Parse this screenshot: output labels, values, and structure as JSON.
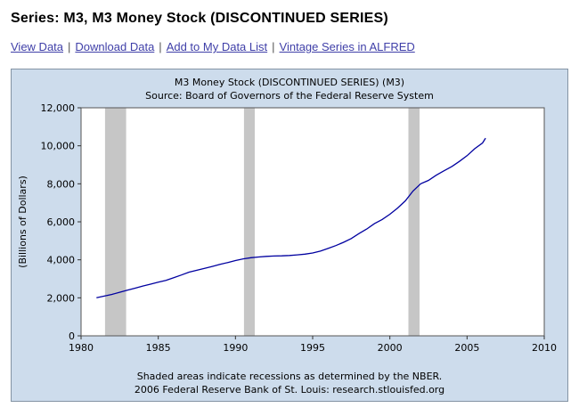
{
  "page": {
    "title": "Series: M3, M3 Money Stock (DISCONTINUED SERIES)"
  },
  "link_separator": "|",
  "links": [
    {
      "label": "View Data"
    },
    {
      "label": "Download Data"
    },
    {
      "label": "Add to My Data List"
    },
    {
      "label": "Vintage Series in ALFRED"
    }
  ],
  "chart_data": {
    "type": "line",
    "title": "M3 Money Stock (DISCONTINUED SERIES) (M3)",
    "subtitle": "Source: Board of Governors of the Federal Reserve System",
    "ylabel": "(Billions of Dollars)",
    "xlim": [
      1980,
      2010
    ],
    "ylim": [
      0,
      12000
    ],
    "x_ticks": [
      1980,
      1985,
      1990,
      1995,
      2000,
      2005,
      2010
    ],
    "y_ticks": [
      0,
      2000,
      4000,
      6000,
      8000,
      10000,
      12000
    ],
    "line_color": "#0000a0",
    "recession_color": "#c6c6c6",
    "panel_background": "#cddcec",
    "recessions": [
      [
        1981.55,
        1982.92
      ],
      [
        1990.55,
        1991.25
      ],
      [
        2001.2,
        2001.92
      ]
    ],
    "series": [
      {
        "name": "M3",
        "x": [
          1981.0,
          1981.5,
          1982.0,
          1982.5,
          1983.0,
          1983.5,
          1984.0,
          1984.5,
          1985.0,
          1985.5,
          1986.0,
          1986.5,
          1987.0,
          1987.5,
          1988.0,
          1988.5,
          1989.0,
          1989.5,
          1990.0,
          1990.5,
          1991.0,
          1991.5,
          1992.0,
          1992.5,
          1993.0,
          1993.5,
          1994.0,
          1994.5,
          1995.0,
          1995.5,
          1996.0,
          1996.5,
          1997.0,
          1997.5,
          1998.0,
          1998.5,
          1999.0,
          1999.5,
          2000.0,
          2000.5,
          2001.0,
          2001.5,
          2002.0,
          2002.5,
          2003.0,
          2003.5,
          2004.0,
          2004.5,
          2005.0,
          2005.5,
          2006.0,
          2006.2
        ],
        "y": [
          2000,
          2090,
          2180,
          2290,
          2400,
          2510,
          2620,
          2720,
          2820,
          2920,
          3060,
          3200,
          3350,
          3450,
          3550,
          3650,
          3760,
          3860,
          3960,
          4050,
          4110,
          4150,
          4180,
          4200,
          4210,
          4230,
          4260,
          4300,
          4360,
          4460,
          4600,
          4750,
          4920,
          5120,
          5380,
          5620,
          5900,
          6120,
          6400,
          6720,
          7100,
          7620,
          8000,
          8180,
          8450,
          8680,
          8900,
          9180,
          9480,
          9850,
          10150,
          10400
        ]
      }
    ],
    "footnotes": [
      "Shaded areas indicate recessions as determined by the NBER.",
      "2006 Federal Reserve Bank of St. Louis: research.stlouisfed.org"
    ]
  }
}
